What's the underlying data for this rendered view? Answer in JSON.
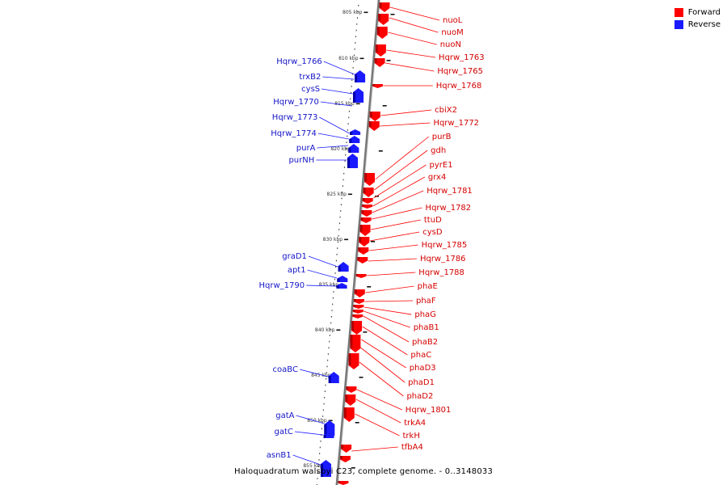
{
  "legend": [
    {
      "label": "Forward",
      "color": "#ff0000"
    },
    {
      "label": "Reverse",
      "color": "#1a1aff"
    }
  ],
  "caption": "Haloquadratum walsbyi C23, complete genome. - 0..3148033",
  "tick_labels": [
    "805 kbp",
    "810 kbp",
    "815 kbp",
    "820 kbp",
    "825 kbp",
    "830 kbp",
    "835 kbp",
    "840 kbp",
    "845 kbp",
    "850 kbp",
    "855 kbp"
  ],
  "forward_genes": [
    "nuoL",
    "nuoM",
    "nuoN",
    "Hqrw_1763",
    "Hqrw_1765",
    "Hqrw_1768",
    "cbiX2",
    "Hqrw_1772",
    "purB",
    "gdh",
    "pyrE1",
    "grx4",
    "Hqrw_1781",
    "Hqrw_1782",
    "ttuD",
    "cysD",
    "Hqrw_1785",
    "Hqrw_1786",
    "Hqrw_1788",
    "phaE",
    "phaF",
    "phaG",
    "phaB1",
    "phaB2",
    "phaC",
    "phaD3",
    "phaD1",
    "phaD2",
    "Hqrw_1801",
    "trkA4",
    "trkH",
    "tfbA4"
  ],
  "reverse_genes": [
    "Hqrw_1766",
    "trxB2",
    "cysS",
    "Hqrw_1770",
    "Hqrw_1773",
    "Hqrw_1774",
    "purA",
    "purNH",
    "graD1",
    "apt1",
    "Hqrw_1790",
    "coaBC",
    "gatA",
    "gatC",
    "asnB1"
  ]
}
